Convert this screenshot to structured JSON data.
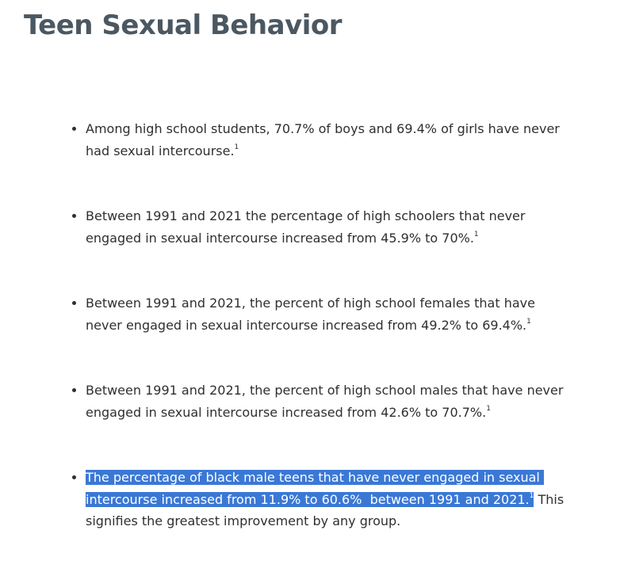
{
  "header": {
    "title": "Teen Sexual Behavior"
  },
  "list": {
    "items": [
      {
        "text": "Among high school students, 70.7% of boys and 69.4% of girls have never had sexual intercourse.",
        "sup": "1"
      },
      {
        "text": "Between 1991 and 2021 the percentage of high schoolers that never engaged in sexual intercourse increased from 45.9% to 70%.",
        "sup": "1"
      },
      {
        "text": "Between 1991 and 2021, the percent of high school females that have never engaged in sexual intercourse increased from 49.2% to 69.4%.",
        "sup": "1"
      },
      {
        "text": "Between 1991 and 2021, the percent of high school males that have never engaged in sexual intercourse increased from 42.6% to 70.7%.",
        "sup": "1"
      },
      {
        "text": "The percentage of black male teens that have never engaged in sexual intercourse increased from 11.9% to 60.6%  between 1991 and 2021.",
        "sup": "1",
        "after": " This signifies the greatest improvement by any group."
      }
    ]
  }
}
